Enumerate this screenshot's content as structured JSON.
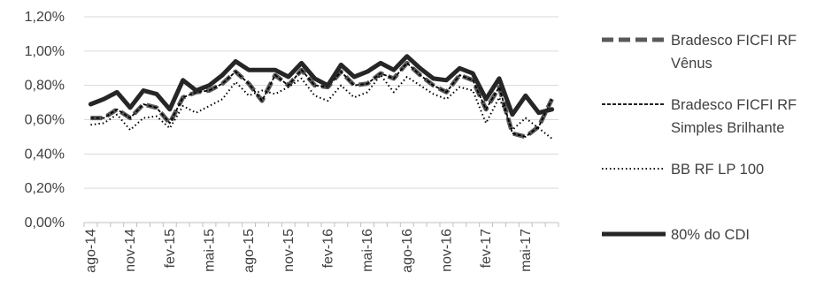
{
  "chart_data": {
    "type": "line",
    "title": "",
    "xlabel": "",
    "ylabel": "",
    "ylim": [
      0,
      1.2
    ],
    "y_ticks": [
      "0,00%",
      "0,20%",
      "0,40%",
      "0,60%",
      "0,80%",
      "1,00%",
      "1,20%"
    ],
    "grid": "horizontal",
    "legend_position": "right",
    "x": [
      "ago-14",
      "set-14",
      "out-14",
      "nov-14",
      "dez-14",
      "jan-15",
      "fev-15",
      "mar-15",
      "abr-15",
      "mai-15",
      "jun-15",
      "jul-15",
      "ago-15",
      "set-15",
      "out-15",
      "nov-15",
      "dez-15",
      "jan-16",
      "fev-16",
      "mar-16",
      "abr-16",
      "mai-16",
      "jun-16",
      "jul-16",
      "ago-16",
      "set-16",
      "out-16",
      "nov-16",
      "dez-16",
      "jan-17",
      "fev-17",
      "mar-17",
      "abr-17",
      "mai-17",
      "jun-17",
      "jul-17"
    ],
    "x_tick_labels": [
      "ago-14",
      "nov-14",
      "fev-15",
      "mai-15",
      "ago-15",
      "nov-15",
      "fev-16",
      "mai-16",
      "ago-16",
      "nov-16",
      "fev-17",
      "mai-17"
    ],
    "series": [
      {
        "name": "Bradesco FICFI RF Vênus",
        "style": "long-dash",
        "color": "#595959",
        "values": [
          0.61,
          0.61,
          0.66,
          0.61,
          0.69,
          0.67,
          0.58,
          0.73,
          0.76,
          0.77,
          0.81,
          0.88,
          0.81,
          0.71,
          0.86,
          0.8,
          0.89,
          0.8,
          0.79,
          0.88,
          0.8,
          0.81,
          0.87,
          0.84,
          0.93,
          0.86,
          0.8,
          0.76,
          0.86,
          0.83,
          0.66,
          0.79,
          0.52,
          0.5,
          0.56,
          0.72
        ]
      },
      {
        "name": "Bradesco FICFI RF Simples Brilhante",
        "style": "short-dash",
        "color": "#000000",
        "values": [
          0.61,
          0.61,
          0.66,
          0.61,
          0.69,
          0.67,
          0.58,
          0.73,
          0.76,
          0.77,
          0.81,
          0.88,
          0.81,
          0.71,
          0.86,
          0.8,
          0.89,
          0.8,
          0.79,
          0.88,
          0.8,
          0.81,
          0.87,
          0.84,
          0.93,
          0.86,
          0.8,
          0.76,
          0.86,
          0.83,
          0.66,
          0.79,
          0.52,
          0.5,
          0.56,
          0.72
        ]
      },
      {
        "name": "BB RF LP 100",
        "style": "dotted",
        "color": "#000000",
        "values": [
          0.57,
          0.58,
          0.63,
          0.54,
          0.61,
          0.62,
          0.55,
          0.68,
          0.64,
          0.68,
          0.72,
          0.82,
          0.74,
          0.77,
          0.75,
          0.79,
          0.84,
          0.74,
          0.71,
          0.8,
          0.73,
          0.76,
          0.86,
          0.76,
          0.85,
          0.8,
          0.75,
          0.72,
          0.79,
          0.77,
          0.58,
          0.73,
          0.54,
          0.61,
          0.55,
          0.49
        ]
      },
      {
        "name": "80% do CDI",
        "style": "solid",
        "color": "#262626",
        "values": [
          0.69,
          0.72,
          0.76,
          0.67,
          0.77,
          0.75,
          0.66,
          0.83,
          0.77,
          0.8,
          0.86,
          0.94,
          0.89,
          0.89,
          0.89,
          0.85,
          0.93,
          0.84,
          0.8,
          0.92,
          0.85,
          0.88,
          0.93,
          0.89,
          0.97,
          0.9,
          0.84,
          0.83,
          0.9,
          0.87,
          0.72,
          0.84,
          0.63,
          0.74,
          0.64,
          0.66
        ]
      }
    ]
  }
}
